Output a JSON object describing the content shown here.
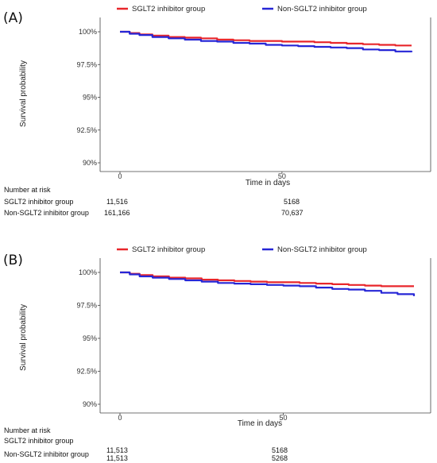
{
  "chart_data": [
    {
      "type": "line",
      "panel_label": "(A)",
      "xlabel": "Time in days",
      "ylabel": "Survival probability",
      "xticks": [
        "0",
        "50"
      ],
      "yticks": [
        "100%",
        "97.5%",
        "95%",
        "92.5%",
        "90%"
      ],
      "xlim": [
        0,
        90
      ],
      "ylim": [
        90,
        100
      ],
      "grid": false,
      "legend_position": "top",
      "series": [
        {
          "name": "SGLT2 inhibitor group",
          "color": "#e8262b",
          "x": [
            0,
            3,
            6,
            10,
            15,
            20,
            25,
            30,
            35,
            40,
            45,
            50,
            55,
            60,
            65,
            70,
            75,
            80,
            85,
            90
          ],
          "y": [
            100,
            99.9,
            99.8,
            99.7,
            99.6,
            99.55,
            99.5,
            99.4,
            99.35,
            99.3,
            99.3,
            99.25,
            99.25,
            99.2,
            99.15,
            99.1,
            99.05,
            99.0,
            98.95,
            98.95
          ]
        },
        {
          "name": "Non-SGLT2 inhibitor group",
          "color": "#2626d6",
          "x": [
            0,
            3,
            6,
            10,
            15,
            20,
            25,
            30,
            35,
            40,
            45,
            50,
            55,
            60,
            65,
            70,
            75,
            80,
            85,
            90
          ],
          "y": [
            100,
            99.85,
            99.75,
            99.6,
            99.5,
            99.4,
            99.3,
            99.25,
            99.15,
            99.1,
            99.0,
            98.95,
            98.9,
            98.85,
            98.8,
            98.75,
            98.65,
            98.6,
            98.5,
            98.45
          ]
        }
      ],
      "risk_table": {
        "title": "Number at risk",
        "rows": [
          {
            "label": "SGLT2 inhibitor group",
            "values": [
              "11,516",
              "5168"
            ]
          },
          {
            "label": "Non-SGLT2 inhibitor group",
            "values": [
              "161,166",
              "70,637"
            ]
          }
        ]
      }
    },
    {
      "type": "line",
      "panel_label": "(B)",
      "xlabel": "Time in days",
      "ylabel": "Survival probability",
      "xticks": [
        "0",
        "50"
      ],
      "yticks": [
        "100%",
        "97.5%",
        "95%",
        "92.5%",
        "90%"
      ],
      "xlim": [
        0,
        90
      ],
      "ylim": [
        90,
        100
      ],
      "grid": false,
      "legend_position": "top",
      "series": [
        {
          "name": "SGLT2 inhibitor group",
          "color": "#e8262b",
          "x": [
            0,
            3,
            6,
            10,
            15,
            20,
            25,
            30,
            35,
            40,
            45,
            50,
            55,
            60,
            65,
            70,
            75,
            80,
            85,
            90
          ],
          "y": [
            100,
            99.9,
            99.8,
            99.7,
            99.6,
            99.55,
            99.45,
            99.4,
            99.35,
            99.3,
            99.25,
            99.25,
            99.2,
            99.15,
            99.1,
            99.05,
            99.0,
            98.95,
            98.95,
            98.95
          ]
        },
        {
          "name": "Non-SGLT2 inhibitor group",
          "color": "#2626d6",
          "x": [
            0,
            3,
            6,
            10,
            15,
            20,
            25,
            30,
            35,
            40,
            45,
            50,
            55,
            60,
            65,
            70,
            75,
            80,
            85,
            90
          ],
          "y": [
            100,
            99.85,
            99.7,
            99.6,
            99.5,
            99.4,
            99.3,
            99.2,
            99.15,
            99.1,
            99.05,
            99.0,
            98.95,
            98.85,
            98.75,
            98.7,
            98.6,
            98.45,
            98.35,
            98.2
          ]
        }
      ],
      "risk_table": {
        "title": "Number at risk",
        "rows": [
          {
            "label": "SGLT2 inhibitor group",
            "values": [
              "11,513",
              "5168"
            ]
          },
          {
            "label": "Non-SGLT2 inhibitor group",
            "values": [
              "11,513",
              "5268"
            ]
          }
        ]
      }
    }
  ]
}
